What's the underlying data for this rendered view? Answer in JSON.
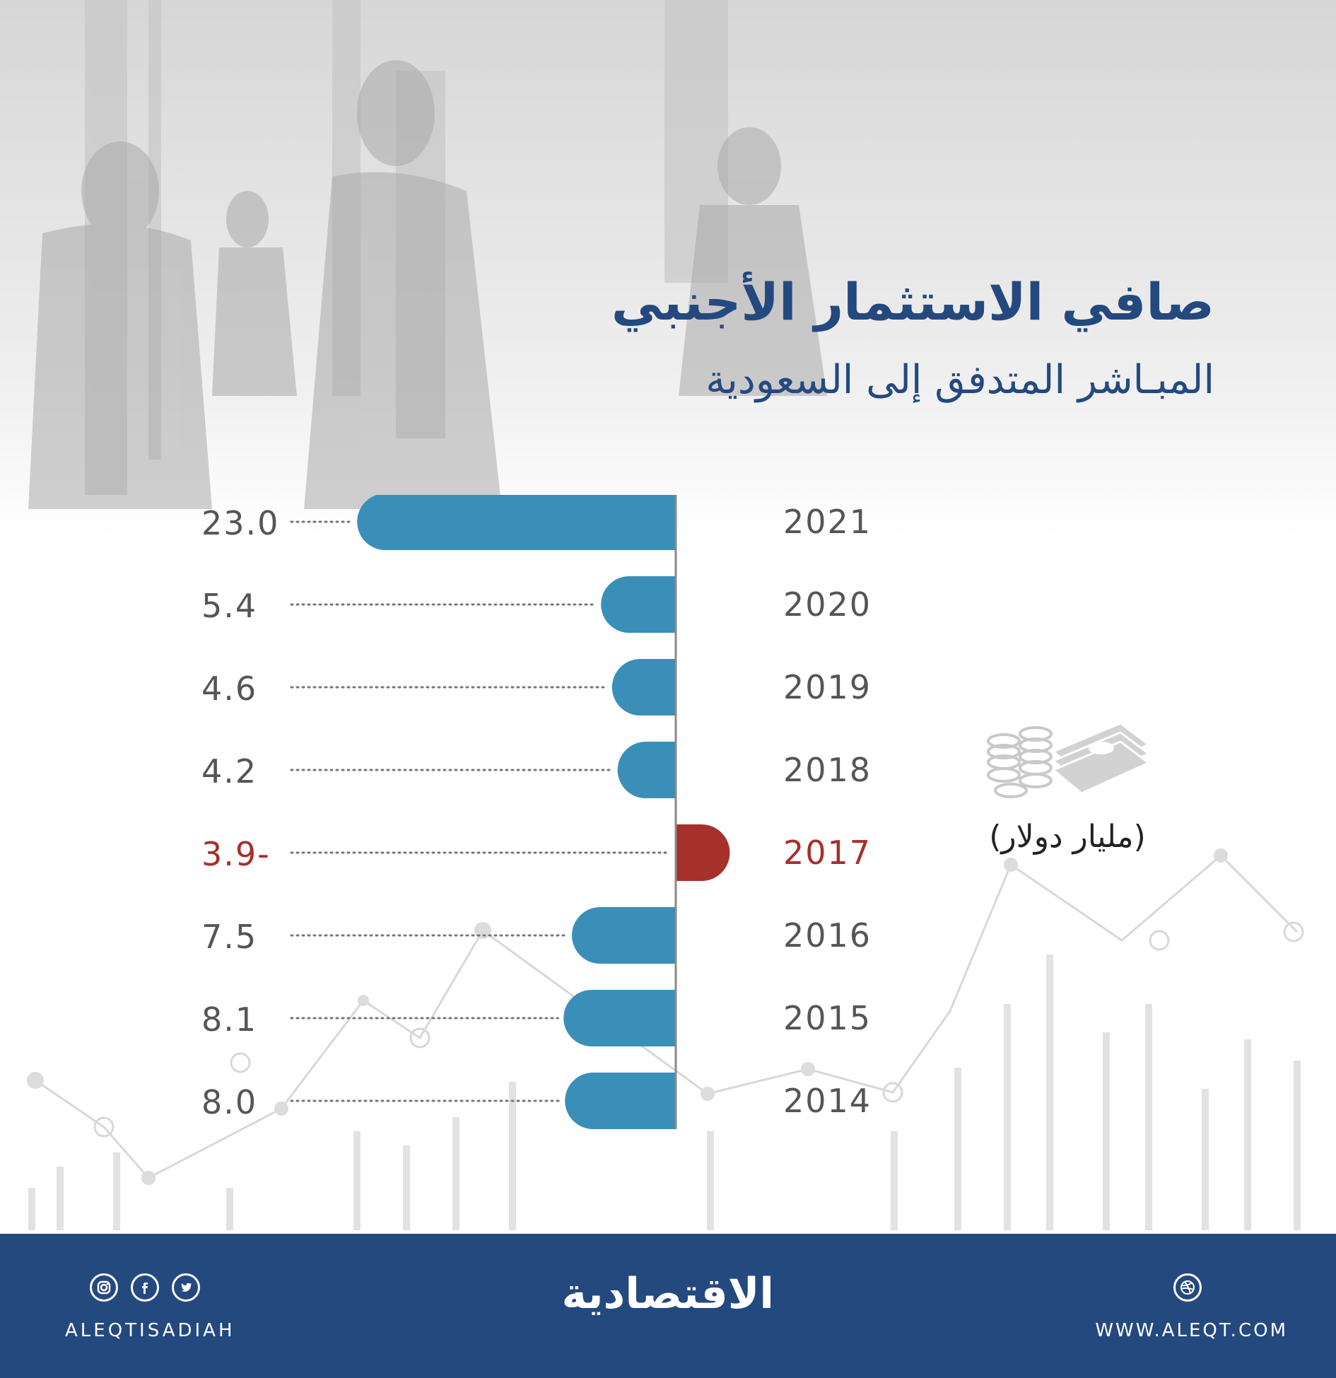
{
  "header": {
    "title": "صافي الاستثمار الأجنبي",
    "subtitle": "المبـاشر المتدفق إلى السعودية"
  },
  "unit": {
    "label": "(مليار دولار)",
    "icon": "money-stack-icon"
  },
  "chart_data": {
    "type": "bar",
    "orientation": "horizontal",
    "categories": [
      "2021",
      "2020",
      "2019",
      "2018",
      "2017",
      "2016",
      "2015",
      "2014"
    ],
    "values": [
      23.0,
      5.4,
      4.6,
      4.2,
      -3.9,
      7.5,
      8.1,
      8.0
    ],
    "value_labels": [
      "23.0",
      "5.4",
      "4.6",
      "4.2",
      "3.9-",
      "7.5",
      "8.1",
      "8.0"
    ],
    "title": "صافي الاستثمار الأجنبي المبـاشر المتدفق إلى السعودية",
    "xlabel": "",
    "ylabel": "",
    "xlim": [
      -3.9,
      23.0
    ],
    "colors": {
      "positive": "#3a8fb8",
      "negative": "#a6302b",
      "text": "#555555"
    },
    "grid": false,
    "legend": "none"
  },
  "footer": {
    "handle": "ALEQTISADIAH",
    "logo": "الاقتصادية",
    "website": "WWW.ALEQT.COM",
    "social_icons": [
      "instagram-icon",
      "facebook-icon",
      "twitter-icon"
    ],
    "web_icon": "dribbble-icon",
    "background_color": "#24497f"
  }
}
